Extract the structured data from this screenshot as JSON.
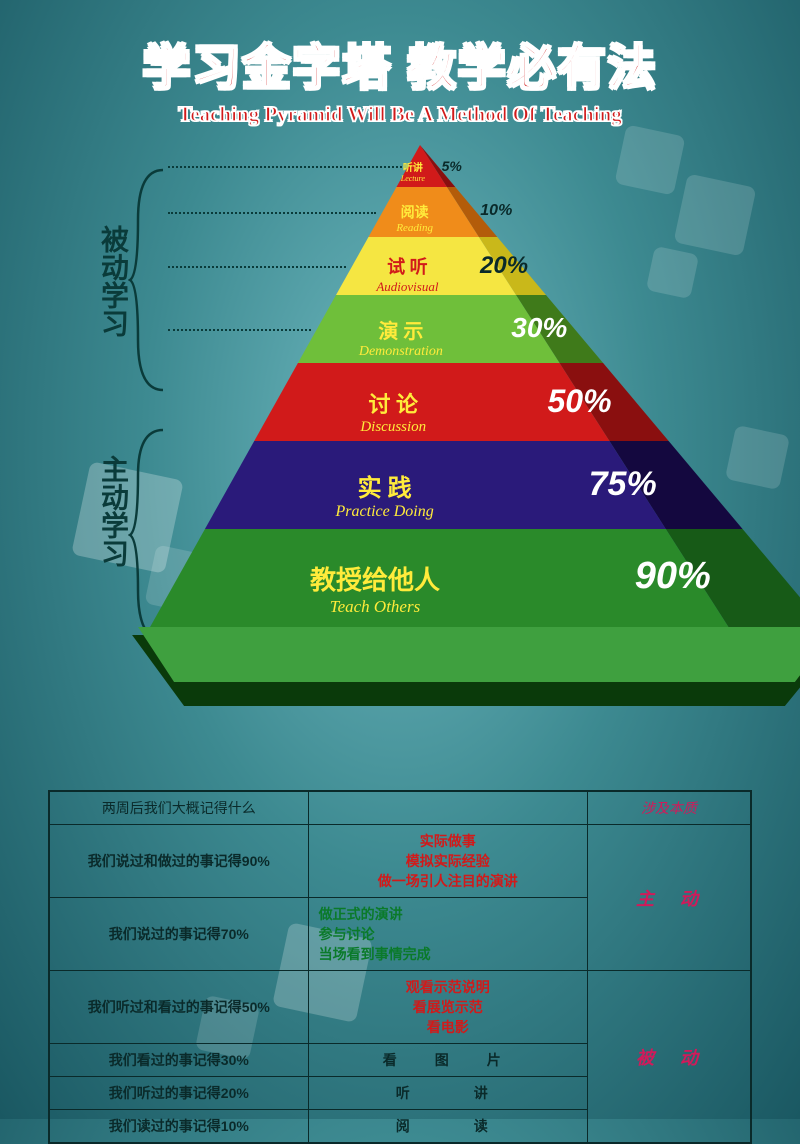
{
  "title_cn": "学习金字塔 教学必有法",
  "title_en": "Teaching Pyramid Will Be A Method Of Teaching",
  "side_labels": {
    "passive": "被动学习",
    "active": "主动学习"
  },
  "pyramid": {
    "type": "pyramid",
    "background_gradient": [
      "#6fb8bf",
      "#3d8a91",
      "#1a5862"
    ],
    "tiers": [
      {
        "cn": "听讲",
        "en": "Lecture",
        "pct": "5%",
        "front": "#d11a1a",
        "side": "#8a0f0f",
        "text": "#ffeb3b",
        "pct_color": "#0a2a2a",
        "cn_fs": 10,
        "en_fs": 8,
        "pct_fs": 14
      },
      {
        "cn": "阅读",
        "en": "Reading",
        "pct": "10%",
        "front": "#f08c1a",
        "side": "#b35c0a",
        "text": "#ffeb3b",
        "pct_color": "#0a2a2a",
        "cn_fs": 14,
        "en_fs": 11,
        "pct_fs": 16
      },
      {
        "cn": "试 听",
        "en": "Audiovisual",
        "pct": "20%",
        "front": "#f5e642",
        "side": "#c9b81a",
        "text": "#d11a1a",
        "pct_color": "#0a2a2a",
        "cn_fs": 18,
        "en_fs": 13,
        "pct_fs": 24
      },
      {
        "cn": "演 示",
        "en": "Demonstration",
        "pct": "30%",
        "front": "#6fbf3a",
        "side": "#3f7a1a",
        "text": "#ffeb3b",
        "pct_color": "#ffffff",
        "cn_fs": 20,
        "en_fs": 14,
        "pct_fs": 28
      },
      {
        "cn": "讨 论",
        "en": "Discussion",
        "pct": "50%",
        "front": "#d11a1a",
        "side": "#8a0f0f",
        "text": "#ffeb3b",
        "pct_color": "#ffffff",
        "cn_fs": 22,
        "en_fs": 15,
        "pct_fs": 32
      },
      {
        "cn": "实 践",
        "en": "Practice Doing",
        "pct": "75%",
        "front": "#2a1a7a",
        "side": "#14083f",
        "text": "#ffeb3b",
        "pct_color": "#ffffff",
        "cn_fs": 24,
        "en_fs": 16,
        "pct_fs": 34
      },
      {
        "cn": "教授给他人",
        "en": "Teach Others",
        "pct": "90%",
        "front": "#2a8a2a",
        "side": "#175a17",
        "text": "#ffeb3b",
        "pct_color": "#ffffff",
        "cn_fs": 26,
        "en_fs": 17,
        "pct_fs": 38
      }
    ],
    "base_color": "#3fa03f",
    "base_shadow": "#0a3a0a"
  },
  "table": {
    "header": {
      "col1": "两周后我们大概记得什么",
      "col3": "涉及本质"
    },
    "groups": [
      {
        "left": "我们说过和做过的事记得90%",
        "mid": [
          "实际做事",
          "模拟实际经验",
          "做一场引人注目的演讲"
        ],
        "left_style": "r-red",
        "mid_style": "r-red",
        "right": "主　动",
        "right_rows": 2,
        "right_style": "r-red"
      },
      {
        "left": "我们说过的事记得70%",
        "mid": [
          "做正式的演讲",
          "参与讨论",
          "当场看到事情完成"
        ],
        "left_style": "r-grn",
        "mid_style": "r-grn"
      },
      {
        "left": "我们听过和看过的事记得50%",
        "mid": [
          "观看示范说明",
          "看展览示范",
          "看电影"
        ],
        "left_style": "r-red",
        "mid_style": "r-red",
        "right": "被　动",
        "right_rows": 4,
        "right_style": "r-grn"
      },
      {
        "left": "我们看过的事记得30%",
        "mid_single": "看　图　片",
        "left_style": "r-blk",
        "mid_style": "r-blk"
      },
      {
        "left": "我们听过的事记得20%",
        "mid_single": "听　　讲",
        "left_style": "r-red",
        "mid_style": "r-blk"
      },
      {
        "left": "我们读过的事记得10%",
        "mid_single": "阅　　读",
        "left_style": "r-blk",
        "mid_style": "r-blk"
      }
    ]
  }
}
